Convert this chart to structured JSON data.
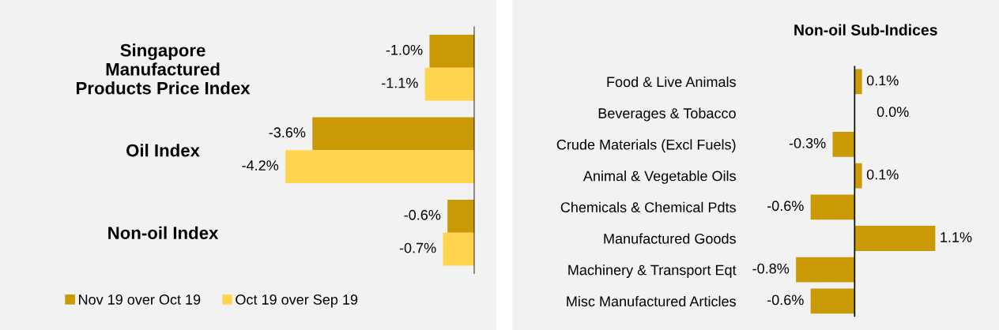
{
  "chart_data": [
    {
      "type": "bar",
      "orientation": "horizontal",
      "categories": [
        "Singapore\nManufactured\nProducts Price Index",
        "Oil Index",
        "Non-oil Index"
      ],
      "series": [
        {
          "name": "Nov 19 over Oct 19",
          "color": "#c99a06",
          "values": [
            -1.0,
            -3.6,
            -0.6
          ],
          "value_labels": [
            "-1.0%",
            "-3.6%",
            "-0.6%"
          ]
        },
        {
          "name": "Oct 19 over Sep 19",
          "color": "#ffd54f",
          "values": [
            -1.1,
            -4.2,
            -0.7
          ],
          "value_labels": [
            "-1.1%",
            "-4.2%",
            "-0.7%"
          ]
        }
      ],
      "legend": "bottom",
      "tick_labels": "y",
      "grid": false
    },
    {
      "type": "bar",
      "orientation": "horizontal",
      "title": "Non-oil Sub-Indices",
      "categories": [
        "Food & Live Animals",
        "Beverages & Tobacco",
        "Crude Materials (Excl Fuels)",
        "Animal & Vegetable Oils",
        "Chemicals & Chemical Pdts",
        "Manufactured Goods",
        "Machinery & Transport Eqt",
        "Misc Manufactured Articles"
      ],
      "series": [
        {
          "color": "#c99a06",
          "values": [
            0.1,
            0.0,
            -0.3,
            0.1,
            -0.6,
            1.1,
            -0.8,
            -0.6
          ],
          "value_labels": [
            "0.1%",
            "0.0%",
            "-0.3%",
            "0.1%",
            "-0.6%",
            "1.1%",
            "-0.8%",
            "-0.6%"
          ]
        }
      ],
      "tick_labels": "y",
      "grid": false
    }
  ]
}
